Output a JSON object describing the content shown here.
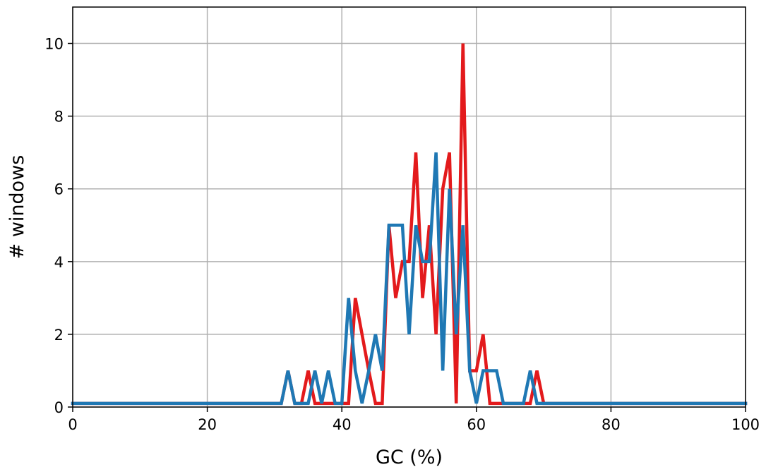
{
  "chart_data": {
    "type": "line",
    "title": "",
    "xlabel": "GC (%)",
    "ylabel": "# windows",
    "xlim": [
      0,
      100
    ],
    "ylim": [
      0,
      11
    ],
    "xticks": [
      0,
      20,
      40,
      60,
      80,
      100
    ],
    "yticks": [
      0,
      2,
      4,
      6,
      8,
      10
    ],
    "grid": true,
    "series": [
      {
        "color": "#e31a1c",
        "x": [
          0,
          1,
          2,
          3,
          4,
          5,
          6,
          7,
          8,
          9,
          10,
          11,
          12,
          13,
          14,
          15,
          16,
          17,
          18,
          19,
          20,
          21,
          22,
          23,
          24,
          25,
          26,
          27,
          28,
          29,
          30,
          31,
          32,
          33,
          34,
          35,
          36,
          37,
          38,
          39,
          40,
          41,
          42,
          43,
          44,
          45,
          46,
          47,
          48,
          49,
          50,
          51,
          52,
          53,
          54,
          55,
          56,
          57,
          58,
          59,
          60,
          61,
          62,
          63,
          64,
          65,
          66,
          67,
          68,
          69,
          70,
          71,
          72,
          73,
          74,
          75,
          76,
          77,
          78,
          79,
          80,
          81,
          82,
          83,
          84,
          85,
          86,
          87,
          88,
          89,
          90,
          91,
          92,
          93,
          94,
          95,
          96,
          97,
          98,
          99,
          100
        ],
        "y": [
          0.1,
          0.1,
          0.1,
          0.1,
          0.1,
          0.1,
          0.1,
          0.1,
          0.1,
          0.1,
          0.1,
          0.1,
          0.1,
          0.1,
          0.1,
          0.1,
          0.1,
          0.1,
          0.1,
          0.1,
          0.1,
          0.1,
          0.1,
          0.1,
          0.1,
          0.1,
          0.1,
          0.1,
          0.1,
          0.1,
          0.1,
          0.1,
          1,
          0.1,
          0.1,
          1,
          0.1,
          0.1,
          0.1,
          0.1,
          0.1,
          0.1,
          3,
          2,
          1,
          0.1,
          0.1,
          5,
          3,
          4,
          4,
          7,
          3,
          5,
          2,
          6,
          7,
          0.1,
          10,
          1,
          1,
          2,
          0.1,
          0.1,
          0.1,
          0.1,
          0.1,
          0.1,
          0.1,
          1,
          0.1,
          0.1,
          0.1,
          0.1,
          0.1,
          0.1,
          0.1,
          0.1,
          0.1,
          0.1,
          0.1,
          0.1,
          0.1,
          0.1,
          0.1,
          0.1,
          0.1,
          0.1,
          0.1,
          0.1,
          0.1,
          0.1,
          0.1,
          0.1,
          0.1,
          0.1,
          0.1,
          0.1,
          0.1,
          0.1,
          0.1
        ]
      },
      {
        "color": "#1f78b4",
        "x": [
          0,
          1,
          2,
          3,
          4,
          5,
          6,
          7,
          8,
          9,
          10,
          11,
          12,
          13,
          14,
          15,
          16,
          17,
          18,
          19,
          20,
          21,
          22,
          23,
          24,
          25,
          26,
          27,
          28,
          29,
          30,
          31,
          32,
          33,
          34,
          35,
          36,
          37,
          38,
          39,
          40,
          41,
          42,
          43,
          44,
          45,
          46,
          47,
          48,
          49,
          50,
          51,
          52,
          53,
          54,
          55,
          56,
          57,
          58,
          59,
          60,
          61,
          62,
          63,
          64,
          65,
          66,
          67,
          68,
          69,
          70,
          71,
          72,
          73,
          74,
          75,
          76,
          77,
          78,
          79,
          80,
          81,
          82,
          83,
          84,
          85,
          86,
          87,
          88,
          89,
          90,
          91,
          92,
          93,
          94,
          95,
          96,
          97,
          98,
          99,
          100
        ],
        "y": [
          0.1,
          0.1,
          0.1,
          0.1,
          0.1,
          0.1,
          0.1,
          0.1,
          0.1,
          0.1,
          0.1,
          0.1,
          0.1,
          0.1,
          0.1,
          0.1,
          0.1,
          0.1,
          0.1,
          0.1,
          0.1,
          0.1,
          0.1,
          0.1,
          0.1,
          0.1,
          0.1,
          0.1,
          0.1,
          0.1,
          0.1,
          0.1,
          1,
          0.1,
          0.1,
          0.1,
          1,
          0.1,
          1,
          0.1,
          0.1,
          3,
          1,
          0.1,
          1,
          2,
          1,
          5,
          5,
          5,
          2,
          5,
          4,
          4,
          7,
          1,
          6,
          2,
          5,
          1,
          0.1,
          1,
          1,
          1,
          0.1,
          0.1,
          0.1,
          0.1,
          1,
          0.1,
          0.1,
          0.1,
          0.1,
          0.1,
          0.1,
          0.1,
          0.1,
          0.1,
          0.1,
          0.1,
          0.1,
          0.1,
          0.1,
          0.1,
          0.1,
          0.1,
          0.1,
          0.1,
          0.1,
          0.1,
          0.1,
          0.1,
          0.1,
          0.1,
          0.1,
          0.1,
          0.1,
          0.1,
          0.1,
          0.1,
          0.1
        ]
      }
    ]
  }
}
